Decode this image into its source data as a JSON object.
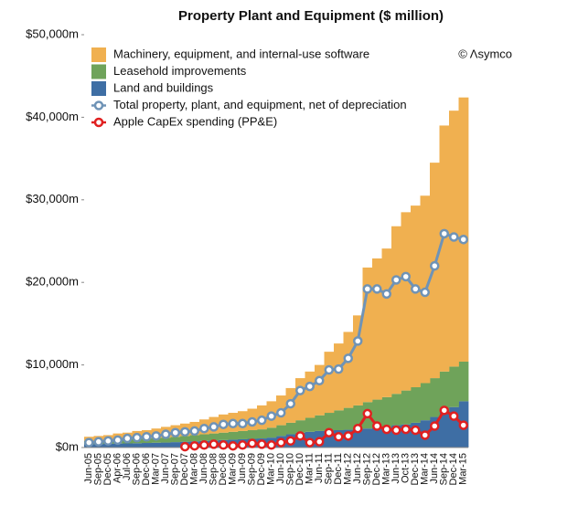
{
  "chart_data": {
    "type": "bar",
    "title": "Property Plant and Equipment ($ million)",
    "annotation": "© Λsymco",
    "categories": [
      "Jun-05",
      "Sep-05",
      "Dec-05",
      "Apr-06",
      "Jul-06",
      "Sep-06",
      "Dec-06",
      "Mar-07",
      "Jun-07",
      "Sep-07",
      "Dec-07",
      "Mar-08",
      "Jun-08",
      "Sep-08",
      "Dec-08",
      "Mar-09",
      "Jun-09",
      "Sep-09",
      "Dec-09",
      "Mar-10",
      "Jun-10",
      "Sep-10",
      "Dec-10",
      "Mar-11",
      "Jun-11",
      "Sep-11",
      "Dec-11",
      "Mar-12",
      "Jun-12",
      "Sep-12",
      "Dec-12",
      "Mar-13",
      "Jun-13",
      "Oct-13",
      "Dec-13",
      "Mar-14",
      "Jun-14",
      "Sep-14",
      "Dec-14",
      "Mar-15"
    ],
    "series": [
      {
        "name": "Land and buildings",
        "type": "bar",
        "color": "#3e6ea4",
        "values": [
          400,
          420,
          450,
          480,
          500,
          520,
          550,
          580,
          600,
          650,
          700,
          750,
          800,
          850,
          900,
          950,
          1000,
          1050,
          1100,
          1200,
          1400,
          1600,
          1800,
          1900,
          2000,
          2050,
          2100,
          2150,
          2200,
          2300,
          2400,
          2500,
          2700,
          2800,
          3000,
          3300,
          3700,
          4200,
          4900,
          5600
        ]
      },
      {
        "name": "Leasehold improvements",
        "type": "bar",
        "color": "#6fa35a",
        "values": [
          400,
          430,
          450,
          470,
          500,
          530,
          550,
          570,
          600,
          650,
          700,
          750,
          800,
          850,
          900,
          950,
          1000,
          1050,
          1100,
          1200,
          1300,
          1400,
          1500,
          1700,
          1900,
          2150,
          2400,
          2650,
          2900,
          3200,
          3400,
          3600,
          3800,
          4100,
          4300,
          4500,
          4700,
          5000,
          4900,
          4800
        ]
      },
      {
        "name": "Machinery, equipment, and internal-use software",
        "type": "bar",
        "color": "#f0b050",
        "values": [
          500,
          550,
          600,
          750,
          800,
          950,
          1000,
          1150,
          1300,
          1400,
          1500,
          1600,
          1800,
          2000,
          2200,
          2300,
          2400,
          2600,
          2900,
          3200,
          3600,
          4200,
          5100,
          5600,
          6100,
          7400,
          8100,
          9200,
          10900,
          16300,
          17100,
          18000,
          20300,
          21600,
          22000,
          22700,
          26100,
          29800,
          31000,
          32000
        ]
      },
      {
        "name": "Total property, plant, and equipment, net of depreciation",
        "type": "line",
        "color": "#6f93b6",
        "values": [
          600,
          700,
          800,
          900,
          1100,
          1200,
          1300,
          1400,
          1600,
          1800,
          1900,
          2000,
          2300,
          2500,
          2800,
          2900,
          2900,
          3100,
          3300,
          3800,
          4200,
          5300,
          6900,
          7400,
          8100,
          9400,
          9500,
          10800,
          12900,
          19200,
          19200,
          18600,
          20300,
          20700,
          19200,
          18800,
          22000,
          25900,
          25500,
          25200
        ]
      },
      {
        "name": "Apple CapEx spending (PP&E)",
        "type": "line",
        "color": "#e02020",
        "values": [
          null,
          null,
          null,
          null,
          null,
          null,
          null,
          null,
          null,
          null,
          100,
          200,
          300,
          400,
          300,
          200,
          300,
          500,
          400,
          300,
          600,
          800,
          1400,
          600,
          700,
          1800,
          1300,
          1400,
          2300,
          4100,
          2600,
          2200,
          2100,
          2200,
          2100,
          1500,
          2600,
          4500,
          3800,
          2700
        ]
      }
    ],
    "legend_order": [
      2,
      1,
      0,
      3,
      4
    ],
    "ylim": [
      0,
      50000
    ],
    "yticks": [
      {
        "value": 0,
        "label": "$0m"
      },
      {
        "value": 10000,
        "label": "$10,000m"
      },
      {
        "value": 20000,
        "label": "$20,000m"
      },
      {
        "value": 30000,
        "label": "$30,000m"
      },
      {
        "value": 40000,
        "label": "$40,000m"
      },
      {
        "value": 50000,
        "label": "$50,000m"
      }
    ]
  }
}
